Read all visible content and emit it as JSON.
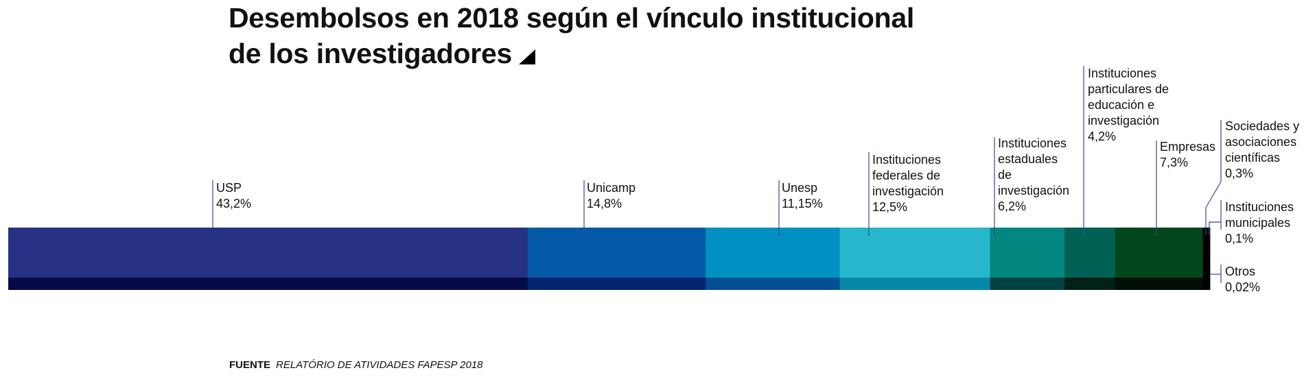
{
  "title": {
    "line1": "Desembolsos en 2018 según el vínculo institucional",
    "line2": "de los investigadores"
  },
  "source": {
    "label": "FUENTE",
    "text": "RELATÓRIO DE ATIVIDADES FAPESP 2018"
  },
  "chart_data": {
    "type": "bar",
    "orientation": "horizontal-stacked",
    "title": "Desembolsos en 2018 según el vínculo institucional de los investigadores",
    "unit": "%",
    "segments": [
      {
        "name": "USP",
        "value": 43.2,
        "label": "43,2%",
        "color": "#263183",
        "shade": "#050c45"
      },
      {
        "name": "Unicamp",
        "value": 14.8,
        "label": "14,8%",
        "color": "#045aa6",
        "shade": "#022470"
      },
      {
        "name": "Unesp",
        "value": 11.15,
        "label": "11,15%",
        "color": "#0190c3",
        "shade": "#024f94"
      },
      {
        "name": "Instituciones federales de investigación",
        "value": 12.5,
        "label": "12,5%",
        "color": "#26b7cc",
        "shade": "#0788a8"
      },
      {
        "name": "Instituciones estaduales de investigación",
        "value": 6.2,
        "label": "6,2%",
        "color": "#028781",
        "shade": "#004141"
      },
      {
        "name": "Instituciones particulares de educación e investigación",
        "value": 4.2,
        "label": "4,2%",
        "color": "#016155",
        "shade": "#002118"
      },
      {
        "name": "Empresas",
        "value": 7.3,
        "label": "7,3%",
        "color": "#02461c",
        "shade": "#000f05"
      },
      {
        "name": "Sociedades y asociaciones científicas",
        "value": 0.3,
        "label": "0,3%",
        "color": "#000000",
        "shade": "#000000"
      },
      {
        "name": "Instituciones municipales",
        "value": 0.1,
        "label": "0,1%",
        "color": "#000000",
        "shade": "#000000"
      },
      {
        "name": "Otros",
        "value": 0.02,
        "label": "0,02%",
        "color": "#000000",
        "shade": "#000000"
      }
    ],
    "label_lines": [
      [
        "USP"
      ],
      [
        "Unicamp"
      ],
      [
        "Unesp"
      ],
      [
        "Instituciones",
        "federales de",
        "investigación"
      ],
      [
        "Instituciones",
        "estaduales",
        "de",
        "investigación"
      ],
      [
        "Instituciones",
        "particulares de",
        "educación e",
        "investigación"
      ],
      [
        "Empresas"
      ],
      [
        "Sociedades y",
        "asociaciones",
        "científicas"
      ],
      [
        "Instituciones",
        "municipales"
      ],
      [
        "Otros"
      ]
    ],
    "leader_color": "#3a4596"
  }
}
